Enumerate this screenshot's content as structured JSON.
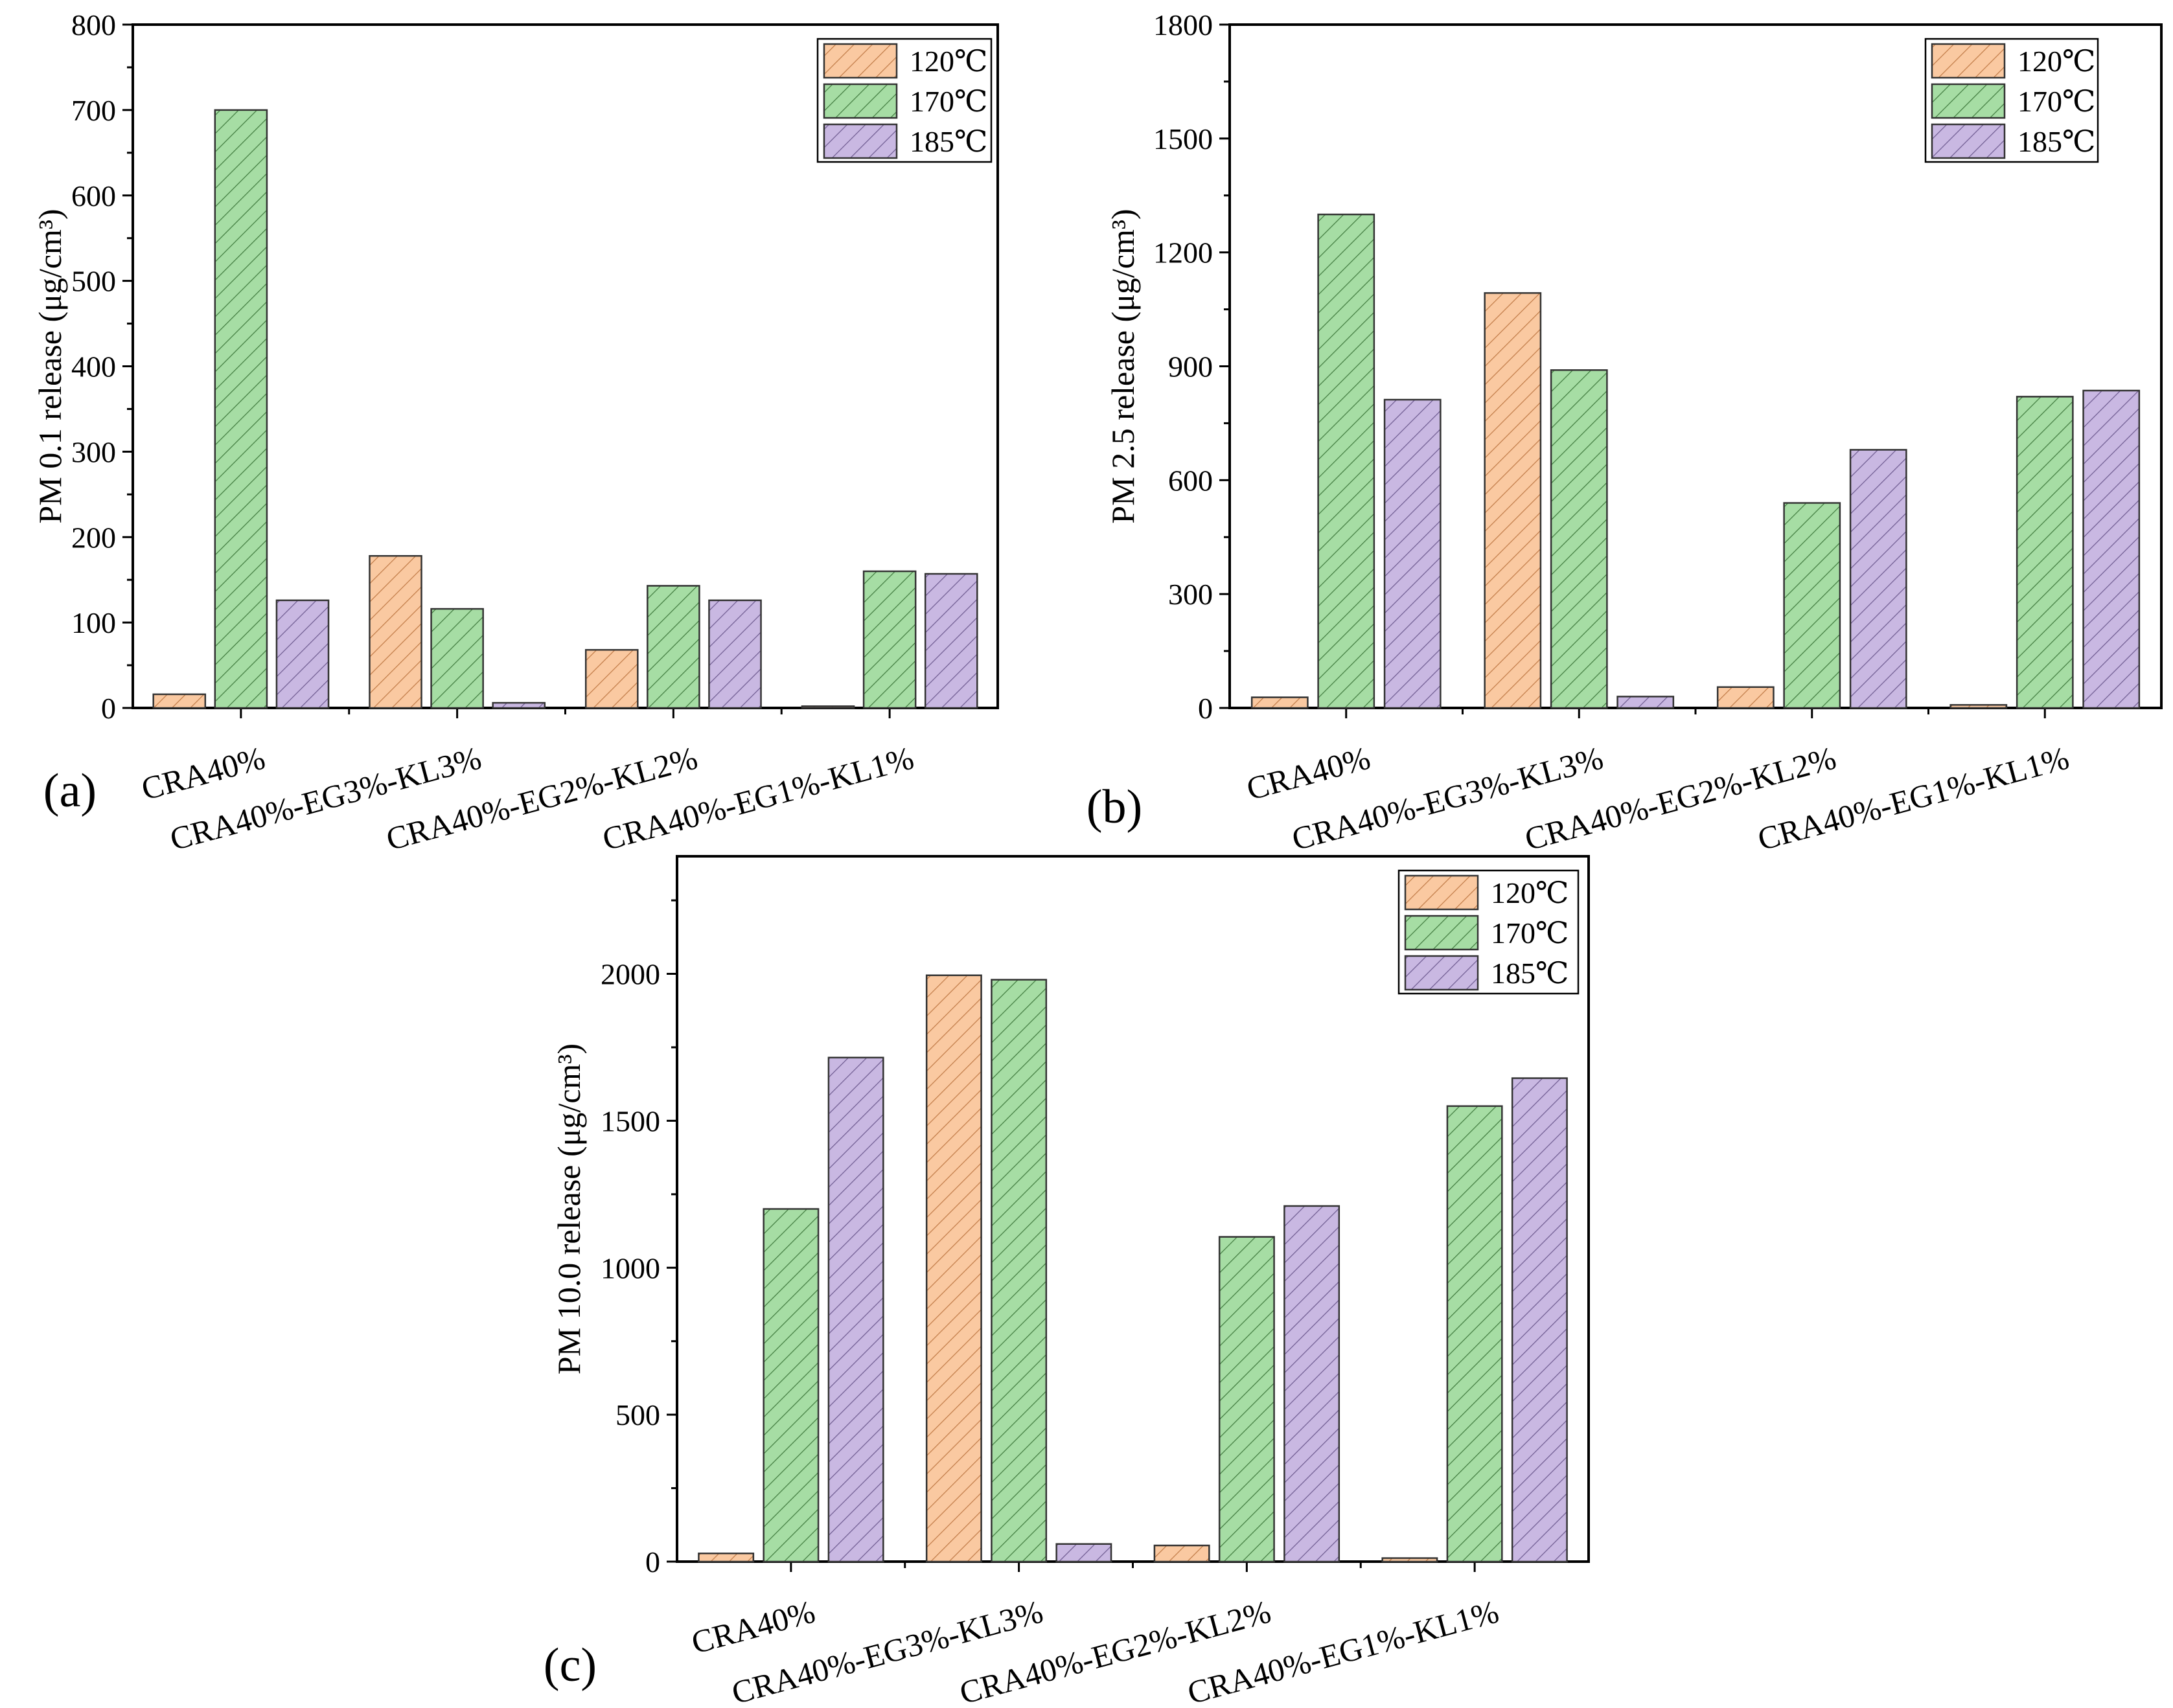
{
  "figure": {
    "series_styles": [
      {
        "name": "120℃",
        "fill": "#FAC9A1",
        "hatch": "#C07A46"
      },
      {
        "name": "170℃",
        "fill": "#A6DDA4",
        "hatch": "#3F7A3D"
      },
      {
        "name": "185℃",
        "fill": "#C9B8E2",
        "hatch": "#6D5A8F"
      }
    ]
  },
  "chart_data": [
    {
      "type": "bar",
      "panel_label": "(a)",
      "ylabel": "PM 0.1 release (μg/cm³)",
      "ylim": [
        0,
        800
      ],
      "yticks": [
        0,
        100,
        200,
        300,
        400,
        500,
        600,
        700,
        800
      ],
      "categories": [
        "CRA40%",
        "CRA40%-EG3%-KL3%",
        "CRA40%-EG2%-KL2%",
        "CRA40%-EG1%-KL1%"
      ],
      "series": [
        {
          "name": "120℃",
          "values": [
            16,
            178,
            68,
            2
          ]
        },
        {
          "name": "170℃",
          "values": [
            700,
            116,
            143,
            160
          ]
        },
        {
          "name": "185℃",
          "values": [
            126,
            6,
            126,
            157
          ]
        }
      ],
      "legend": "top-right"
    },
    {
      "type": "bar",
      "panel_label": "(b)",
      "ylabel": "PM 2.5 release (μg/cm³)",
      "ylim": [
        0,
        1800
      ],
      "yticks": [
        0,
        300,
        600,
        900,
        1200,
        1500,
        1800
      ],
      "categories": [
        "CRA40%",
        "CRA40%-EG3%-KL3%",
        "CRA40%-EG2%-KL2%",
        "CRA40%-EG1%-KL1%"
      ],
      "series": [
        {
          "name": "120℃",
          "values": [
            28,
            1093,
            55,
            8
          ]
        },
        {
          "name": "170℃",
          "values": [
            1300,
            890,
            540,
            820
          ]
        },
        {
          "name": "185℃",
          "values": [
            812,
            30,
            680,
            836
          ]
        }
      ],
      "legend": "top-right"
    },
    {
      "type": "bar",
      "panel_label": "(c)",
      "ylabel": "PM 10.0 release (μg/cm³)",
      "ylim": [
        0,
        2400
      ],
      "yticks": [
        0,
        500,
        1000,
        1500,
        2000
      ],
      "categories": [
        "CRA40%",
        "CRA40%-EG3%-KL3%",
        "CRA40%-EG2%-KL2%",
        "CRA40%-EG1%-KL1%"
      ],
      "series": [
        {
          "name": "120℃",
          "values": [
            28,
            1995,
            55,
            12
          ]
        },
        {
          "name": "170℃",
          "values": [
            1200,
            1980,
            1105,
            1550
          ]
        },
        {
          "name": "185℃",
          "values": [
            1715,
            60,
            1210,
            1645
          ]
        }
      ],
      "legend": "top-right"
    }
  ]
}
